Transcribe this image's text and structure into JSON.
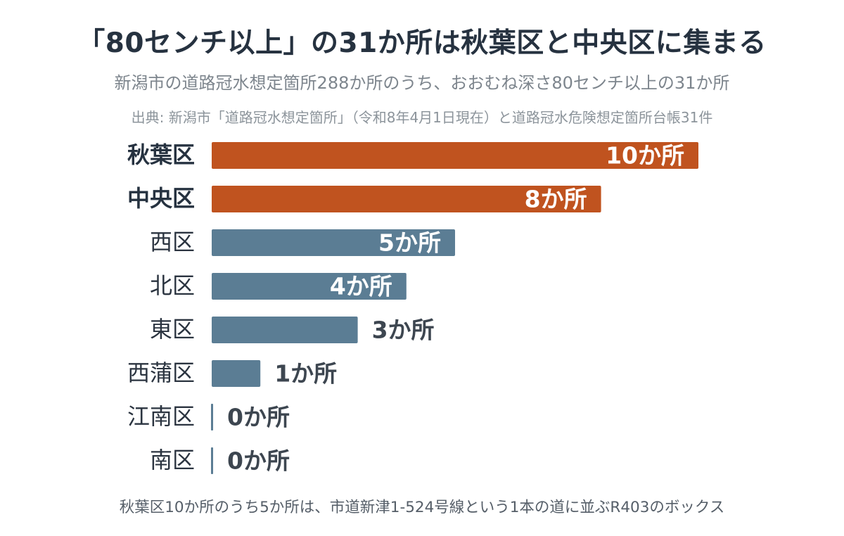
{
  "title": "「80センチ以上」の31か所は秋葉区と中央区に集まる",
  "subtitle": "新潟市の道路冠水想定箇所288か所のうち、おおむね深さ80センチ以上の31か所",
  "source": "出典: 新潟市「道路冠水想定箇所」（令和8年4月1日現在）と道路冠水危険想定箇所台帳31件",
  "footnote": "秋葉区10か所のうち5か所は、市道新津1-524号線という1本の道に並ぶR403のボックス",
  "colors": {
    "highlight": "#c0531f",
    "default": "#5b7d94",
    "label_dark": "#263240",
    "label_normal": "#2b3440",
    "value_outside": "#3d4650",
    "value_inside": "#ffffff"
  },
  "chart_data": {
    "type": "bar",
    "orientation": "horizontal",
    "value_suffix": "か所",
    "categories": [
      "秋葉区",
      "中央区",
      "西区",
      "北区",
      "東区",
      "西蒲区",
      "江南区",
      "南区"
    ],
    "values": [
      10,
      8,
      5,
      4,
      3,
      1,
      0,
      0
    ],
    "highlighted": [
      "秋葉区",
      "中央区"
    ],
    "data_labels": [
      "10か所",
      "8か所",
      "5か所",
      "4か所",
      "3か所",
      "1か所",
      "0か所",
      "0か所"
    ],
    "xlim": [
      0,
      10
    ],
    "grid": false,
    "legend": "none"
  }
}
